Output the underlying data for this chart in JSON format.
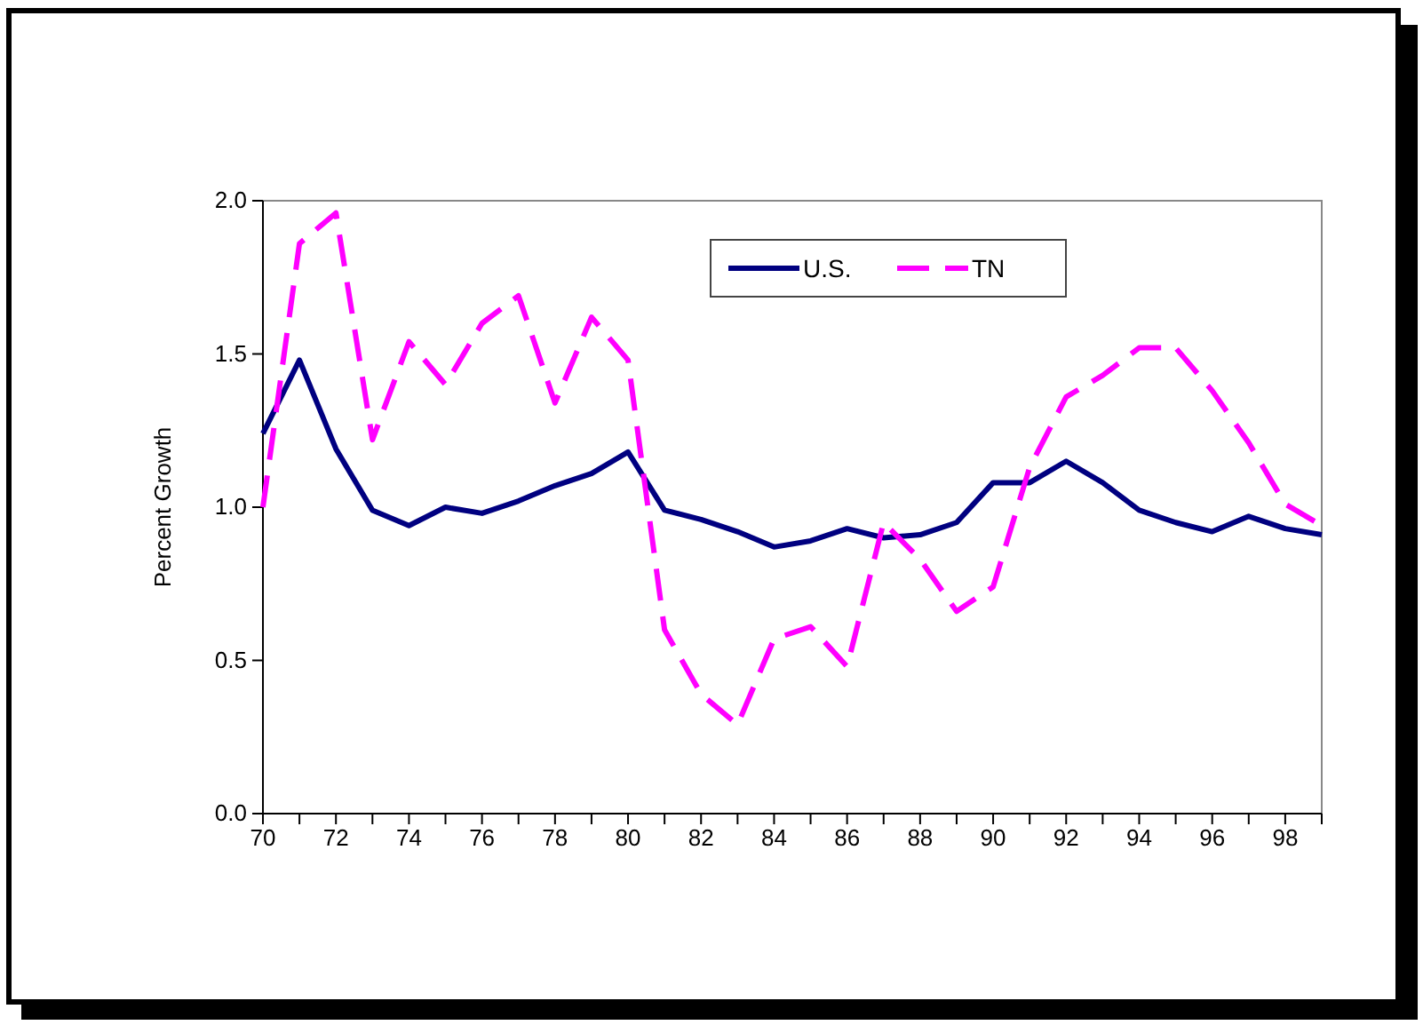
{
  "chart_data": {
    "type": "line",
    "ylabel": "Percent Growth",
    "x": [
      70,
      71,
      72,
      73,
      74,
      75,
      76,
      77,
      78,
      79,
      80,
      81,
      82,
      83,
      84,
      85,
      86,
      87,
      88,
      89,
      90,
      91,
      92,
      93,
      94,
      95,
      96,
      97,
      98,
      99
    ],
    "series": [
      {
        "name": "U.S.",
        "color": "#000080",
        "line_style": "solid",
        "values": [
          1.24,
          1.48,
          1.19,
          0.99,
          0.94,
          1.0,
          0.98,
          1.02,
          1.07,
          1.11,
          1.18,
          0.99,
          0.96,
          0.92,
          0.87,
          0.89,
          0.93,
          0.9,
          0.91,
          0.95,
          1.08,
          1.08,
          1.15,
          1.08,
          0.99,
          0.95,
          0.92,
          0.97,
          0.93,
          0.91
        ]
      },
      {
        "name": "TN",
        "color": "#ff00ff",
        "line_style": "dashed",
        "values": [
          1.0,
          1.86,
          1.96,
          1.22,
          1.54,
          1.4,
          1.6,
          1.69,
          1.34,
          1.62,
          1.48,
          0.6,
          0.39,
          0.29,
          0.57,
          0.61,
          0.48,
          0.95,
          0.83,
          0.66,
          0.74,
          1.13,
          1.36,
          1.43,
          1.52,
          1.52,
          1.38,
          1.21,
          1.01,
          0.94
        ]
      }
    ],
    "xlim": [
      70,
      99
    ],
    "xticks": [
      70,
      {
        "value": 71,
        "label": null
      },
      72,
      {
        "value": 73,
        "label": null
      },
      74,
      {
        "value": 75,
        "label": null
      },
      76,
      {
        "value": 77,
        "label": null
      },
      78,
      {
        "value": 79,
        "label": null
      },
      80,
      {
        "value": 81,
        "label": null
      },
      82,
      {
        "value": 83,
        "label": null
      },
      84,
      {
        "value": 85,
        "label": null
      },
      86,
      {
        "value": 87,
        "label": null
      },
      88,
      {
        "value": 89,
        "label": null
      },
      90,
      {
        "value": 91,
        "label": null
      },
      92,
      {
        "value": 93,
        "label": null
      },
      94,
      {
        "value": 95,
        "label": null
      },
      96,
      {
        "value": 97,
        "label": null
      },
      98,
      {
        "value": 99,
        "label": null
      }
    ],
    "ylim": [
      0,
      2
    ],
    "yticks": [
      {
        "value": 0,
        "label": "0.0"
      },
      {
        "value": 0.5,
        "label": "0.5"
      },
      {
        "value": 1,
        "label": "1.0"
      },
      {
        "value": 1.5,
        "label": "1.5"
      },
      {
        "value": 2,
        "label": "2.0"
      }
    ],
    "grid": false,
    "legend": "top right",
    "marker": "none"
  }
}
